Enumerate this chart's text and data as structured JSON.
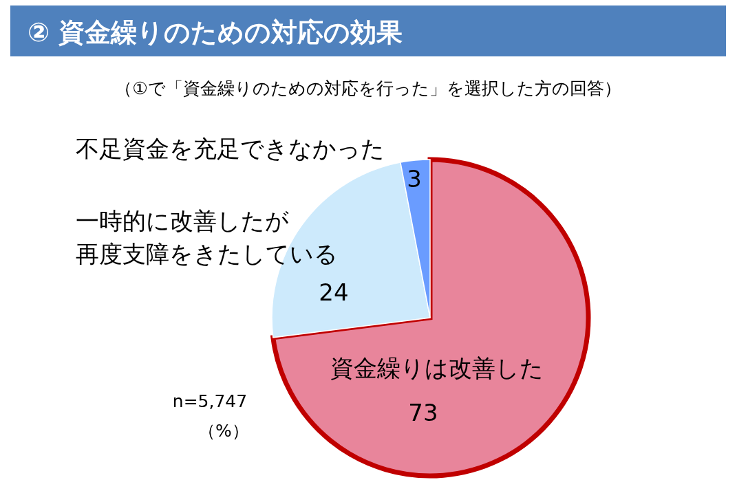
{
  "chart_data": {
    "type": "pie",
    "title": "② 資金繰りのための対応の効果",
    "subtitle": "（①で「資金繰りのための対応を行った」を選択した方の回答）",
    "categories": [
      "資金繰りは改善した",
      "一時的に改善したが再度支障をきたしている",
      "不足資金を充足できなかった"
    ],
    "values": [
      73,
      24,
      3
    ],
    "colors": [
      "#e8859b",
      "#cdeafc",
      "#6a9cff"
    ],
    "data_labels": true,
    "annotations": [
      "n=5,747",
      "（%）"
    ]
  }
}
